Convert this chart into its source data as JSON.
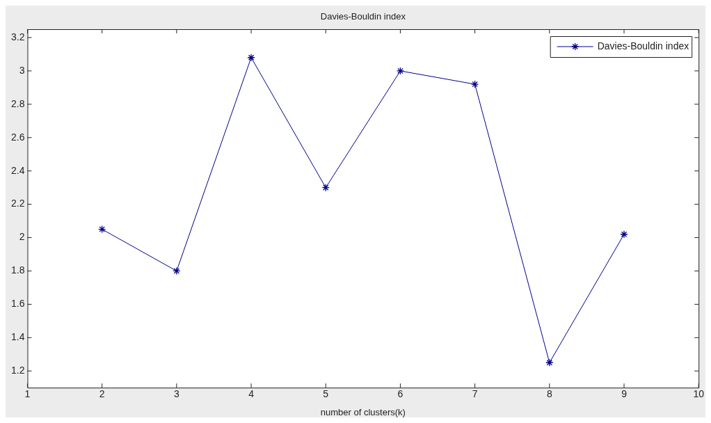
{
  "chart_data": {
    "type": "line",
    "title": "Davies-Bouldin index",
    "xlabel": "number of clusters(k)",
    "x": [
      2,
      3,
      4,
      5,
      6,
      7,
      8,
      9
    ],
    "series": [
      {
        "name": "Davies-Bouldin index",
        "color": "#00008b",
        "values": [
          2.05,
          1.8,
          3.08,
          2.3,
          3.0,
          2.92,
          1.25,
          2.02
        ]
      }
    ],
    "xlim": [
      1,
      10
    ],
    "xticks": [
      1,
      2,
      3,
      4,
      5,
      6,
      7,
      8,
      9,
      10
    ],
    "ylim": [
      1.1,
      3.25
    ],
    "yticks": [
      1.2,
      1.4,
      1.6,
      1.8,
      2,
      2.2,
      2.4,
      2.6,
      2.8,
      3,
      3.2
    ],
    "grid": false,
    "legend": "top right",
    "marker": "cross",
    "line_style": "solid"
  }
}
